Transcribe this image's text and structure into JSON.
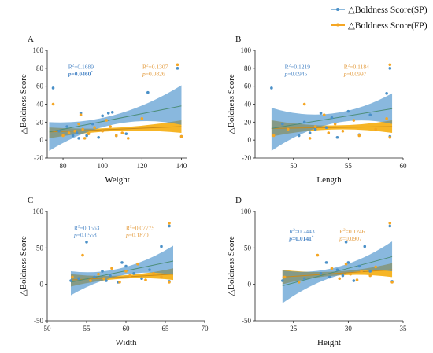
{
  "legend": {
    "sp_label": "△Boldness Score(SP)",
    "fp_label": "△Boldness Score(FP)"
  },
  "colors": {
    "sp": "#4a90c8",
    "sp_band": "#3a88c8",
    "fp": "#f5a623",
    "fp_band": "#f5a800",
    "stat_sp": "#4a86c6",
    "stat_fp": "#e39a3b"
  },
  "chart_data": [
    {
      "panel_label": "A",
      "type": "scatter",
      "xlabel": "Weight",
      "ylabel": "△Boldness Score",
      "xlim": [
        72,
        143
      ],
      "ylim": [
        -20,
        100
      ],
      "xticks": [
        "80",
        "100",
        "120",
        "140"
      ],
      "xtick_values": [
        80,
        100,
        120,
        140
      ],
      "yticks": [
        "-20",
        "0",
        "20",
        "40",
        "60",
        "80",
        "100"
      ],
      "ytick_values": [
        -20,
        0,
        20,
        40,
        60,
        80,
        100
      ],
      "stats": {
        "sp": {
          "r2": "=0.1689",
          "p_label": "p",
          "p": "=0.0460",
          "sig": "*"
        },
        "fp": {
          "r2": "=0.1307",
          "p_label": "p",
          "p": "=0.0826",
          "sig": ""
        }
      },
      "series": [
        {
          "name": "△Boldness Score(SP)",
          "x": [
            75,
            78,
            82,
            85,
            87,
            88,
            89,
            90,
            92,
            95,
            98,
            100,
            103,
            105,
            107,
            112,
            123,
            138,
            140
          ],
          "y": [
            58,
            10,
            15,
            5,
            8,
            2,
            30,
            12,
            5,
            18,
            3,
            27,
            30,
            31,
            5,
            7,
            53,
            80,
            4
          ]
        },
        {
          "name": "△Boldness Score(FP)",
          "x": [
            75,
            80,
            83,
            86,
            88,
            89,
            90,
            91,
            93,
            96,
            100,
            102,
            104,
            107,
            110,
            113,
            120,
            138,
            140
          ],
          "y": [
            40,
            5,
            8,
            10,
            18,
            28,
            12,
            2,
            7,
            14,
            10,
            22,
            15,
            5,
            8,
            2,
            24,
            84,
            4
          ]
        }
      ],
      "fits": {
        "sp": {
          "x0": 73,
          "y0": 9,
          "x1": 140,
          "y1": 38,
          "band_lo0": -12,
          "band_hi0": 20,
          "band_lo1": 17,
          "band_hi1": 61
        },
        "fp": {
          "x0": 73,
          "y0": 9,
          "x1": 140,
          "y1": 15,
          "band_lo0": 2,
          "band_hi0": 14,
          "band_lo1": 8,
          "band_hi1": 22
        }
      }
    },
    {
      "panel_label": "B",
      "type": "scatter",
      "xlabel": "Length",
      "ylabel": "△Boldness Score",
      "xlim": [
        46.5,
        60
      ],
      "ylim": [
        -20,
        100
      ],
      "xticks": [
        "50",
        "55",
        "60"
      ],
      "xtick_values": [
        50,
        55,
        60
      ],
      "yticks": [
        "-20",
        "0",
        "20",
        "40",
        "60",
        "80",
        "100"
      ],
      "ytick_values": [
        -20,
        0,
        20,
        40,
        60,
        80,
        100
      ],
      "stats": {
        "sp": {
          "r2": "=0.1219",
          "p_label": "p",
          "p": "=0.0945",
          "sig": ""
        },
        "fp": {
          "r2": "=0.1184",
          "p_label": "p",
          "p": "=0.0997",
          "sig": ""
        }
      },
      "series": [
        {
          "name": "△Boldness Score(SP)",
          "x": [
            48,
            49,
            50.5,
            51,
            51.5,
            52,
            52.5,
            53,
            53.5,
            54,
            55,
            56,
            57,
            58.5,
            58.8,
            58.8
          ],
          "y": [
            58,
            18,
            5,
            20,
            8,
            12,
            30,
            14,
            25,
            3,
            32,
            6,
            28,
            52,
            80,
            4
          ]
        },
        {
          "name": "△Boldness Score(FP)",
          "x": [
            48.2,
            49.5,
            51,
            51.5,
            52,
            52.8,
            53.2,
            53.8,
            54.5,
            55.5,
            56,
            57.5,
            58.5,
            58.8,
            58.8
          ],
          "y": [
            5,
            12,
            40,
            2,
            15,
            28,
            8,
            18,
            10,
            22,
            5,
            12,
            24,
            84,
            3
          ]
        }
      ],
      "fits": {
        "sp": {
          "x0": 48,
          "y0": 13,
          "x1": 59,
          "y1": 35,
          "band_lo0": -12,
          "band_hi0": 36,
          "band_lo1": 18,
          "band_hi1": 52
        },
        "fp": {
          "x0": 48,
          "y0": 13,
          "x1": 59,
          "y1": 15,
          "band_lo0": 4,
          "band_hi0": 22,
          "band_lo1": 8,
          "band_hi1": 22
        }
      }
    },
    {
      "panel_label": "C",
      "type": "scatter",
      "xlabel": "Width",
      "ylabel": "△Boldness Score",
      "xlim": [
        50,
        70
      ],
      "ylim": [
        -50,
        100
      ],
      "xticks": [
        "50",
        "55",
        "60",
        "65",
        "70"
      ],
      "xtick_values": [
        50,
        55,
        60,
        65,
        70
      ],
      "yticks": [
        "-50",
        "0",
        "50",
        "100"
      ],
      "ytick_values": [
        -50,
        0,
        50,
        100
      ],
      "stats": {
        "sp": {
          "r2": "=0.1563",
          "p_label": "p",
          "p": "=0.0558",
          "sig": ""
        },
        "fp": {
          "r2": "=0.07775",
          "p_label": "p",
          "p": "=0.1870",
          "sig": ""
        }
      },
      "series": [
        {
          "name": "△Boldness Score(SP)",
          "x": [
            53,
            54,
            55,
            56,
            57,
            57.5,
            58,
            59,
            59.5,
            60,
            61,
            62,
            63,
            64.5,
            65.5,
            65.5
          ],
          "y": [
            5,
            8,
            58,
            10,
            18,
            5,
            12,
            3,
            30,
            25,
            15,
            8,
            20,
            52,
            80,
            4
          ]
        },
        {
          "name": "△Boldness Score(FP)",
          "x": [
            53.2,
            54.5,
            55.5,
            56.5,
            57.2,
            58.2,
            59.2,
            60,
            60.5,
            61.5,
            62.5,
            63.5,
            64.5,
            65.5,
            65.5
          ],
          "y": [
            10,
            40,
            5,
            14,
            8,
            22,
            3,
            18,
            12,
            28,
            6,
            15,
            10,
            84,
            3
          ]
        }
      ],
      "fits": {
        "sp": {
          "x0": 53,
          "y0": 3,
          "x1": 66,
          "y1": 32,
          "band_lo0": -15,
          "band_hi0": 18,
          "band_lo1": 13,
          "band_hi1": 53
        },
        "fp": {
          "x0": 53,
          "y0": 6,
          "x1": 66,
          "y1": 14,
          "band_lo0": -3,
          "band_hi0": 14,
          "band_lo1": 6,
          "band_hi1": 22
        }
      }
    },
    {
      "panel_label": "D",
      "type": "scatter",
      "xlabel": "Height",
      "ylabel": "△Boldness Score",
      "xlim": [
        21.5,
        35
      ],
      "ylim": [
        -50,
        100
      ],
      "xticks": [
        "25",
        "30",
        "35"
      ],
      "xtick_values": [
        25,
        30,
        35
      ],
      "yticks": [
        "-50",
        "0",
        "50",
        "100"
      ],
      "ytick_values": [
        -50,
        0,
        50,
        100
      ],
      "stats": {
        "sp": {
          "r2": "=0.2443",
          "p_label": "p",
          "p": "=0.0141",
          "sig": "*"
        },
        "fp": {
          "r2": "=0.1246",
          "p_label": "p",
          "p": "=0.0907",
          "sig": ""
        }
      },
      "series": [
        {
          "name": "△Boldness Score(SP)",
          "x": [
            24,
            26,
            27.5,
            28,
            28.3,
            29,
            29.5,
            29.8,
            30,
            30.5,
            31,
            31.5,
            32,
            33.8,
            34
          ],
          "y": [
            5,
            8,
            15,
            30,
            10,
            20,
            12,
            58,
            30,
            5,
            25,
            52,
            18,
            80,
            4
          ]
        },
        {
          "name": "△Boldness Score(FP)",
          "x": [
            24.2,
            25.5,
            27.2,
            28.5,
            29.2,
            29.8,
            30.2,
            30.8,
            31.2,
            32,
            32.5,
            33.8,
            34
          ],
          "y": [
            10,
            3,
            40,
            22,
            8,
            28,
            14,
            6,
            18,
            12,
            24,
            84,
            3
          ]
        }
      ],
      "fits": {
        "sp": {
          "x0": 24,
          "y0": -2,
          "x1": 34,
          "y1": 38,
          "band_lo0": -26,
          "band_hi0": 19,
          "band_lo1": 18,
          "band_hi1": 59
        },
        "fp": {
          "x0": 24,
          "y0": 10,
          "x1": 34,
          "y1": 20,
          "band_lo0": 0,
          "band_hi0": 20,
          "band_lo1": 10,
          "band_hi1": 29
        }
      }
    }
  ]
}
